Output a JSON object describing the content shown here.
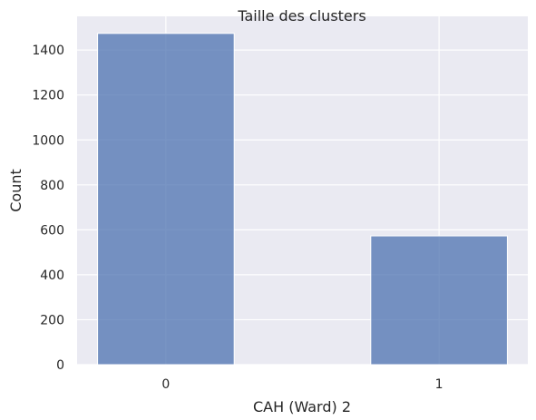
{
  "chart_data": {
    "type": "bar",
    "title": "Taille des clusters",
    "xlabel": "CAH (Ward) 2",
    "ylabel": "Count",
    "categories": [
      "0",
      "1"
    ],
    "x": [
      0,
      1
    ],
    "values": [
      1474,
      573
    ],
    "xlim": [
      -0.325,
      1.325
    ],
    "ylim": [
      0,
      1550
    ],
    "yticks": [
      0,
      200,
      400,
      600,
      800,
      1000,
      1200,
      1400
    ],
    "bar_width": 0.5,
    "grid": true,
    "legend": "none",
    "colors": {
      "bar_fill": "#4c72b0",
      "bar_opacity": 0.75,
      "plot_background": "#eaeaf2",
      "grid": "#ffffff",
      "text": "#262626"
    }
  }
}
